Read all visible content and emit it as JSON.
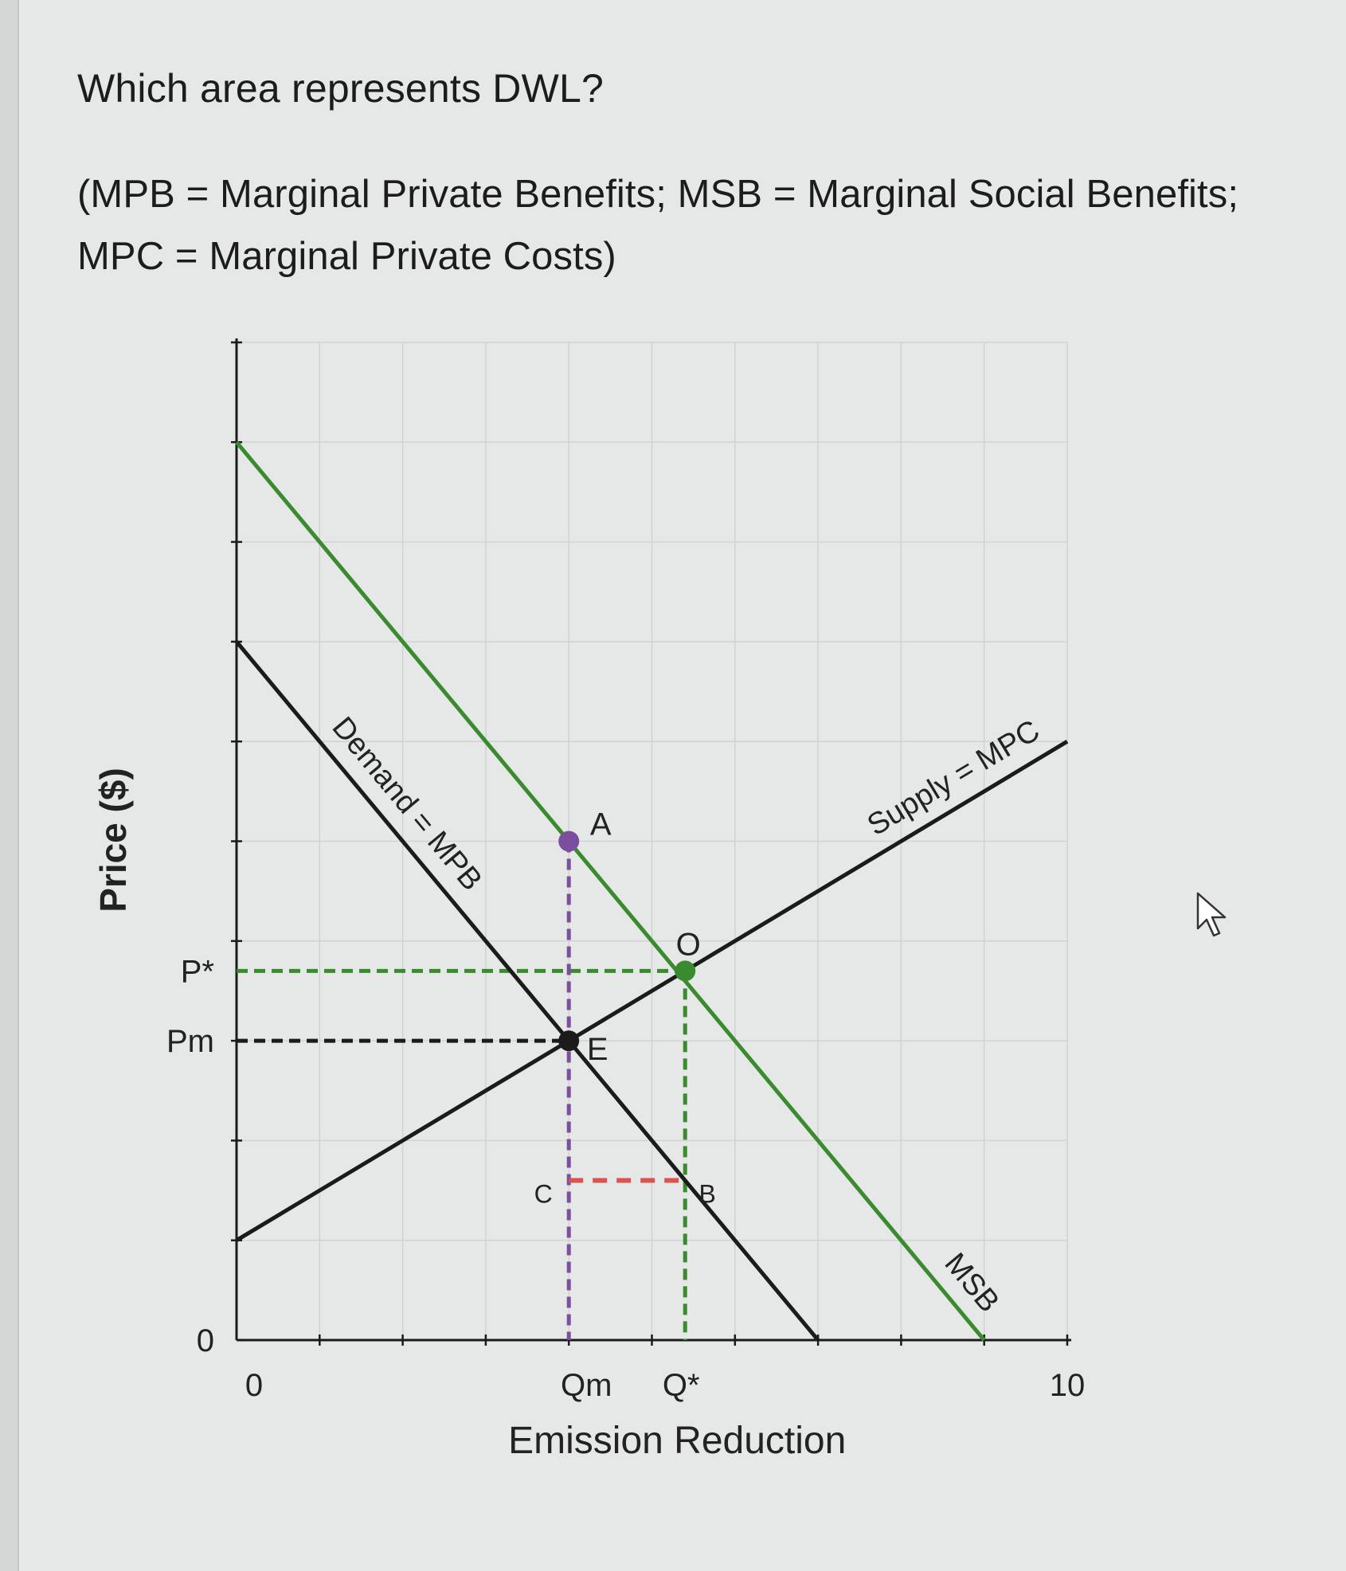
{
  "question": {
    "title": "Which area represents DWL?",
    "definitions_line1": "(MPB = Marginal Private Benefits; MSB = Marginal Social Benefits;",
    "definitions_line2": "MPC = Marginal Private Costs)"
  },
  "colors": {
    "background": "#e6e8e7",
    "black_line": "#1b1b1b",
    "green_line": "#3a8a2e",
    "purple": "#7b4f9e",
    "red_dash": "#d9534f",
    "grid": "#d0d3d2"
  },
  "cursor_icon": "pointer-arrow-icon",
  "chart_data": {
    "type": "line",
    "xlabel": "Emission Reduction",
    "ylabel": "Price ($)",
    "xlim": [
      0,
      10
    ],
    "ylim": [
      0,
      10
    ],
    "grid": true,
    "x_ticks": [
      {
        "x": 0,
        "label": "0"
      },
      {
        "x": 4,
        "label": "Qm"
      },
      {
        "x": 5.4,
        "label": "Q*"
      },
      {
        "x": 10,
        "label": "10"
      }
    ],
    "y_ticks": [
      {
        "y": 0,
        "label": "0"
      },
      {
        "y": 3,
        "label": "Pm"
      },
      {
        "y": 3.7,
        "label": "P*"
      }
    ],
    "series": [
      {
        "name": "Demand = MPB",
        "color": "#1b1b1b",
        "points": [
          [
            0,
            7
          ],
          [
            7,
            0
          ]
        ],
        "label_at": 1.8
      },
      {
        "name": "Supply = MPC",
        "color": "#1b1b1b",
        "points": [
          [
            0,
            1
          ],
          [
            10,
            6
          ]
        ],
        "label_at": 8.8
      },
      {
        "name": "MSB",
        "color": "#3a8a2e",
        "points": [
          [
            0,
            9
          ],
          [
            9,
            0
          ]
        ],
        "label_at": 8.6
      }
    ],
    "points": [
      {
        "label": "A",
        "x": 4,
        "y": 5,
        "marker": "#7b4f9e"
      },
      {
        "label": "O",
        "x": 5.4,
        "y": 3.7,
        "marker": "#3a8a2e"
      },
      {
        "label": "E",
        "x": 4,
        "y": 3,
        "marker": "#1b1b1b"
      },
      {
        "label": "B",
        "x": 5.4,
        "y": 1.6,
        "marker": null
      },
      {
        "label": "C",
        "x": 4,
        "y": 1.6,
        "marker": null
      }
    ]
  }
}
